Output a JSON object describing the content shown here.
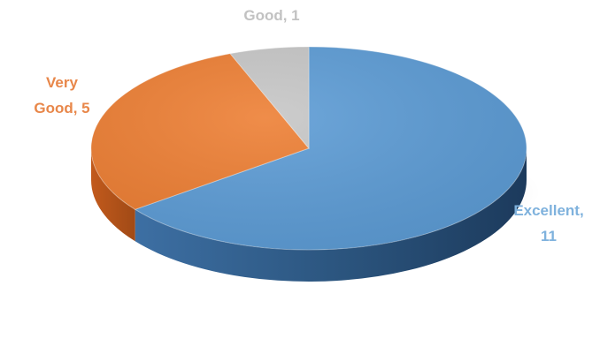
{
  "chart_data": {
    "type": "pie",
    "title": "",
    "slices": [
      {
        "label": "Excellent",
        "value": 11,
        "color": "#5b9bd5",
        "label_color": "#7fb2dd"
      },
      {
        "label": "Very Good",
        "value": 5,
        "color": "#ed7d31",
        "label_color": "#e8874a"
      },
      {
        "label": "Good",
        "value": 1,
        "color": "#c6c6c6",
        "label_color": "#c2c2c2"
      }
    ],
    "data_labels": [
      "Excellent, 11",
      "Very Good, 5",
      "Good, 1"
    ],
    "style": "3d"
  }
}
